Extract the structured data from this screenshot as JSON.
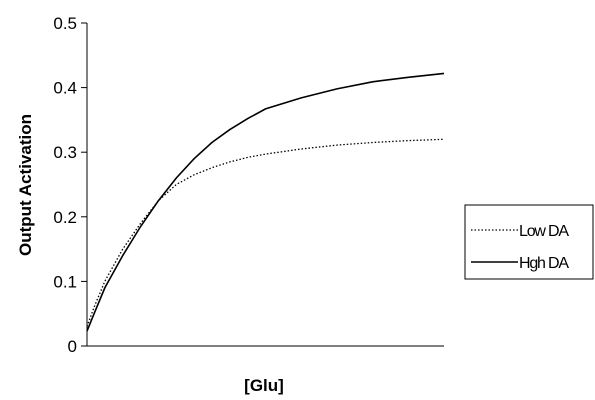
{
  "chart_data": {
    "type": "line",
    "title": "",
    "xlabel": "[Glu]",
    "ylabel": "Output Activation",
    "ylim": [
      0,
      0.5
    ],
    "yticks": [
      "0",
      "0.1",
      "0.2",
      "0.3",
      "0.4",
      "0.5"
    ],
    "xticks": [],
    "grid": false,
    "legend_position": "right",
    "series": [
      {
        "name": "Low DA",
        "style": "dotted",
        "color": "#000000",
        "x": [
          0,
          0.02,
          0.05,
          0.1,
          0.15,
          0.2,
          0.25,
          0.3,
          0.35,
          0.4,
          0.45,
          0.5,
          0.6,
          0.7,
          0.8,
          0.9,
          1.0
        ],
        "y": [
          0.03,
          0.06,
          0.1,
          0.15,
          0.19,
          0.225,
          0.25,
          0.265,
          0.276,
          0.285,
          0.292,
          0.297,
          0.305,
          0.311,
          0.315,
          0.318,
          0.32
        ]
      },
      {
        "name": "Hgh DA",
        "style": "solid",
        "color": "#000000",
        "x": [
          0,
          0.02,
          0.05,
          0.1,
          0.15,
          0.2,
          0.25,
          0.3,
          0.35,
          0.4,
          0.45,
          0.5,
          0.6,
          0.7,
          0.8,
          0.9,
          1.0
        ],
        "y": [
          0.023,
          0.05,
          0.09,
          0.14,
          0.185,
          0.225,
          0.26,
          0.29,
          0.315,
          0.335,
          0.352,
          0.367,
          0.384,
          0.398,
          0.409,
          0.416,
          0.422
        ]
      }
    ]
  }
}
